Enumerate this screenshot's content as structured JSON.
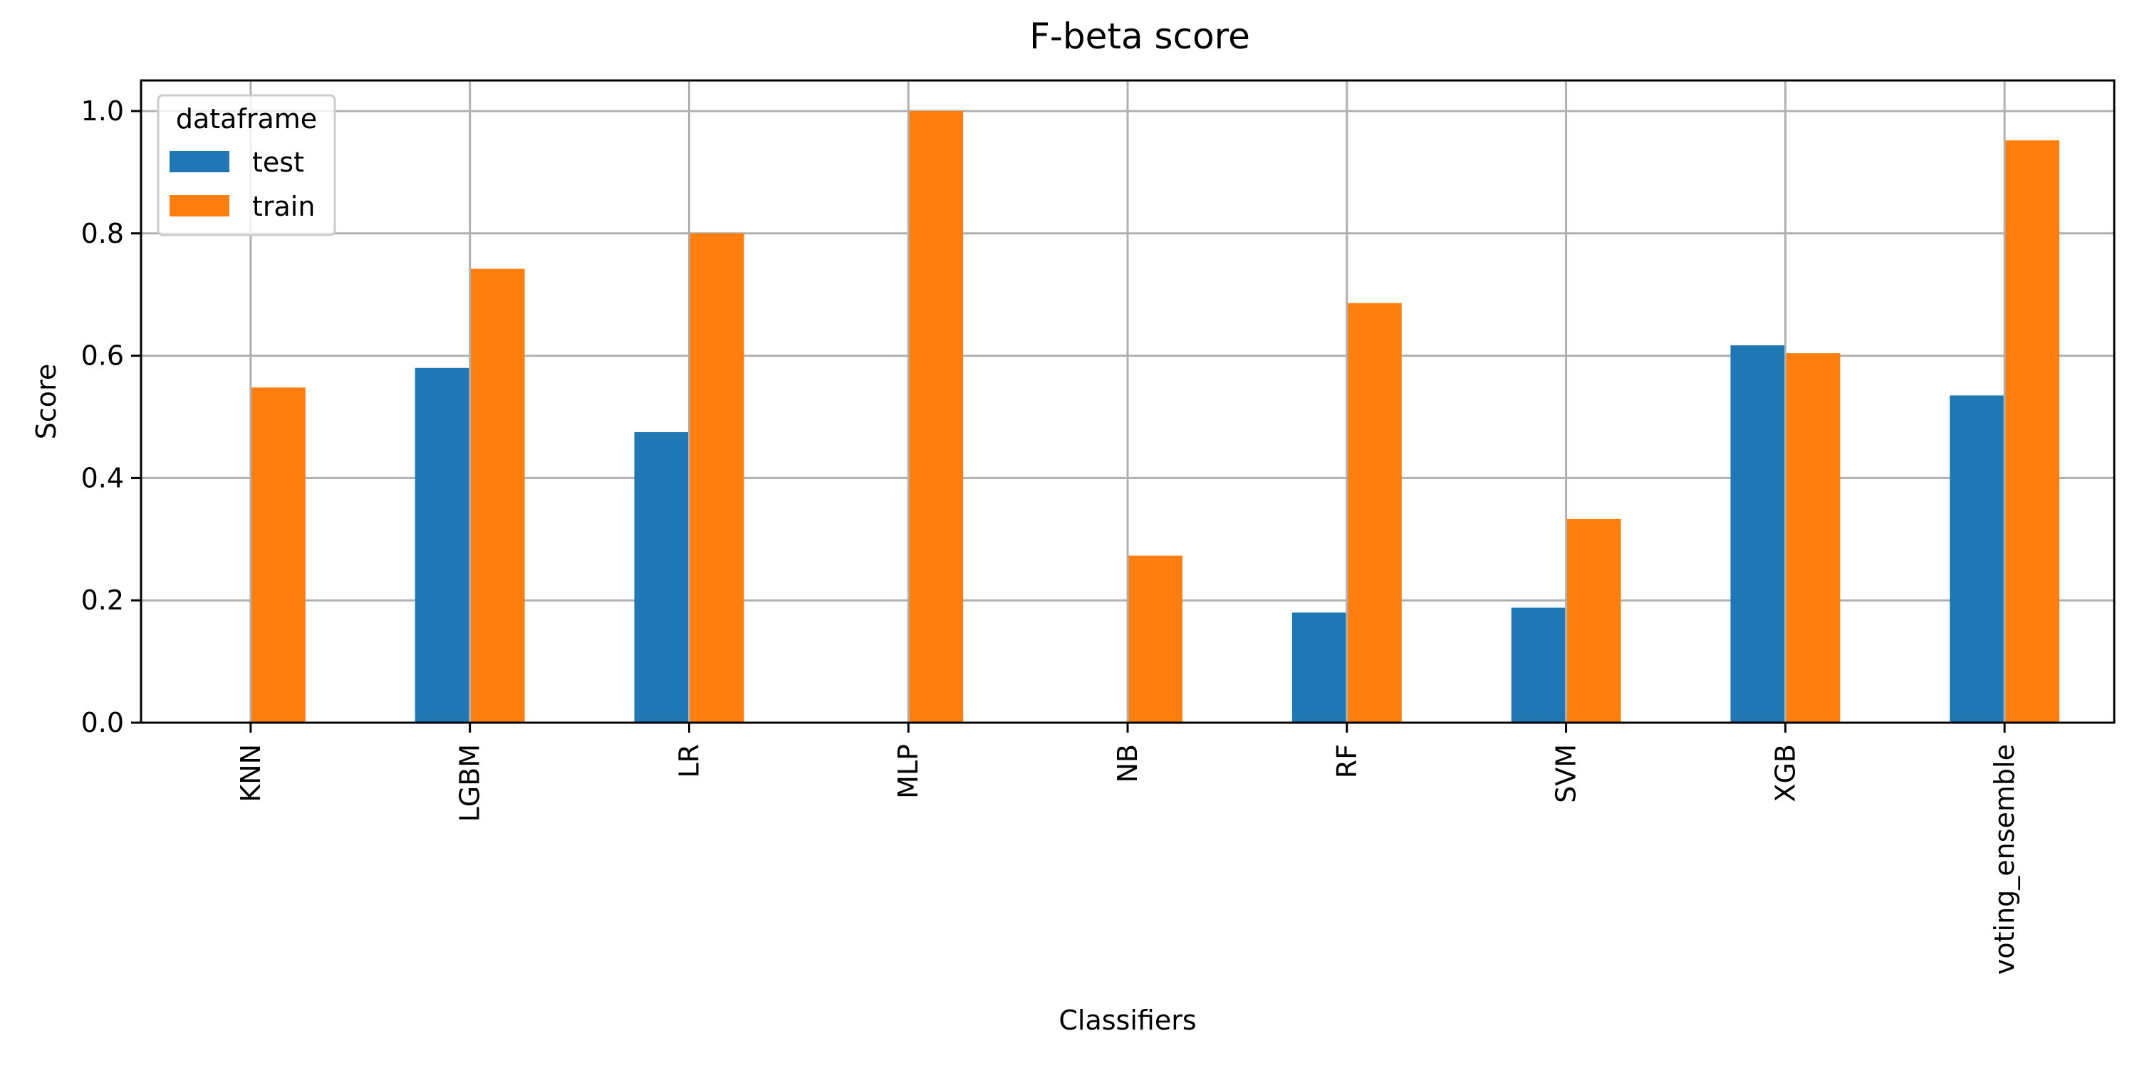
{
  "chart_data": {
    "type": "bar",
    "title": "F-beta score",
    "xlabel": "Classifiers",
    "ylabel": "Score",
    "ylim": [
      0,
      1.05
    ],
    "yticks": [
      "0.0",
      "0.2",
      "0.4",
      "0.6",
      "0.8",
      "1.0"
    ],
    "grid": true,
    "categories": [
      "KNN",
      "LGBM",
      "LR",
      "MLP",
      "NB",
      "RF",
      "SVM",
      "XGB",
      "voting_ensemble"
    ],
    "legend": {
      "title": "dataframe",
      "position": "top-left"
    },
    "series": [
      {
        "name": "test",
        "color": "#1f77b4",
        "values": [
          0.0,
          0.58,
          0.475,
          0.0,
          0.0,
          0.18,
          0.188,
          0.617,
          0.535
        ]
      },
      {
        "name": "train",
        "color": "#ff7f0e",
        "values": [
          0.548,
          0.742,
          0.8,
          1.0,
          0.273,
          0.686,
          0.333,
          0.604,
          0.952
        ]
      }
    ]
  }
}
